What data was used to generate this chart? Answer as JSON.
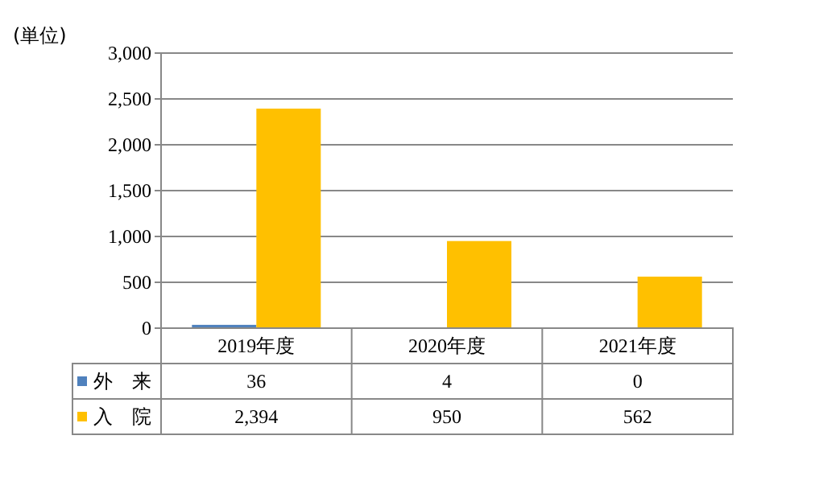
{
  "chart_data": {
    "type": "bar",
    "ylabel": "(単位)",
    "categories": [
      "2019年度",
      "2020年度",
      "2021年度"
    ],
    "series": [
      {
        "name": "外　来",
        "color": "#4f81bd",
        "values": [
          36,
          4,
          0
        ],
        "value_labels": [
          "36",
          "4",
          "0"
        ]
      },
      {
        "name": "入　院",
        "color": "#ffc000",
        "values": [
          2394,
          950,
          562
        ],
        "value_labels": [
          "2,394",
          "950",
          "562"
        ]
      }
    ],
    "ylim": [
      0,
      3000
    ],
    "yticks": [
      {
        "value": 0,
        "label": "0"
      },
      {
        "value": 500,
        "label": "500"
      },
      {
        "value": 1000,
        "label": "1,000"
      },
      {
        "value": 1500,
        "label": "1,500"
      },
      {
        "value": 2000,
        "label": "2,000"
      },
      {
        "value": 2500,
        "label": "2,500"
      },
      {
        "value": 3000,
        "label": "3,000"
      }
    ],
    "grid": "y",
    "legend": "bottom"
  }
}
